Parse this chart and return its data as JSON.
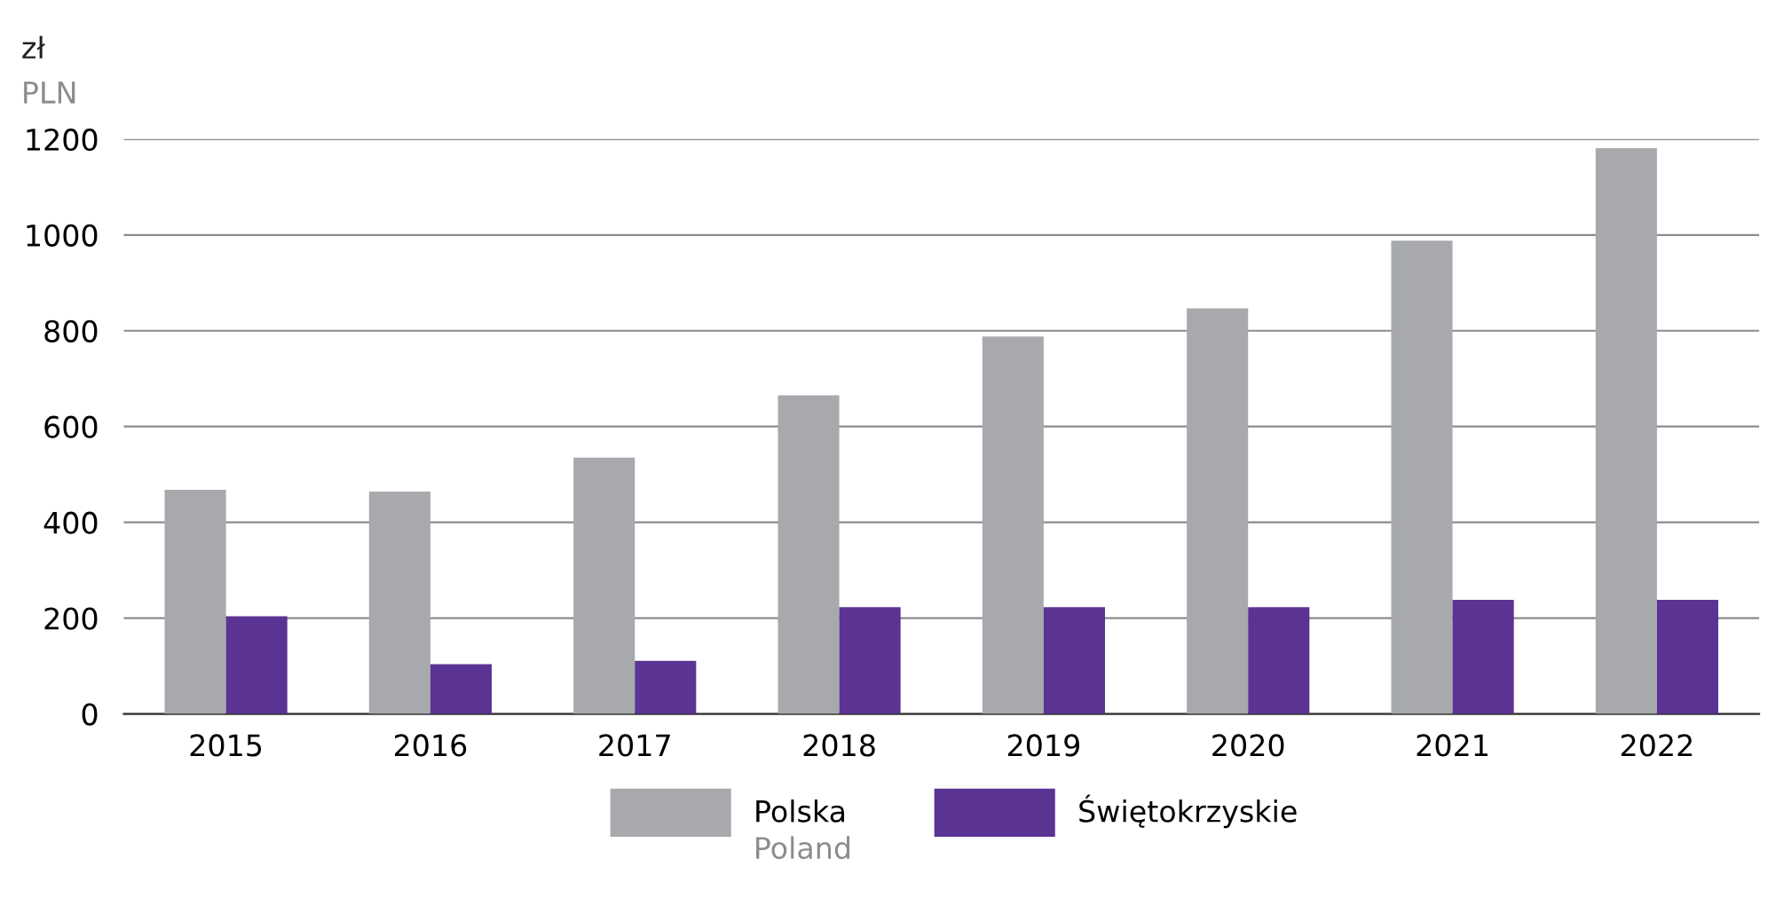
{
  "chart_data": {
    "type": "bar",
    "ylabel": "zł",
    "annotations": [
      "PLN",
      "Poland"
    ],
    "categories": [
      "2015",
      "2016",
      "2017",
      "2018",
      "2019",
      "2020",
      "2021",
      "2022"
    ],
    "series": [
      {
        "name": "Polska",
        "color": "#a7a9ac",
        "values": [
          468,
          464,
          535,
          665,
          788,
          847,
          988,
          1181
        ]
      },
      {
        "name": "Świętokrzyskie",
        "color": "#5b3393",
        "values": [
          204,
          104,
          111,
          223,
          223,
          223,
          238,
          238
        ]
      }
    ],
    "ylim": [
      0,
      1200
    ],
    "yticks": [
      0,
      200,
      400,
      600,
      800,
      1000,
      1200
    ],
    "grid": "y",
    "legend": "bottom"
  }
}
